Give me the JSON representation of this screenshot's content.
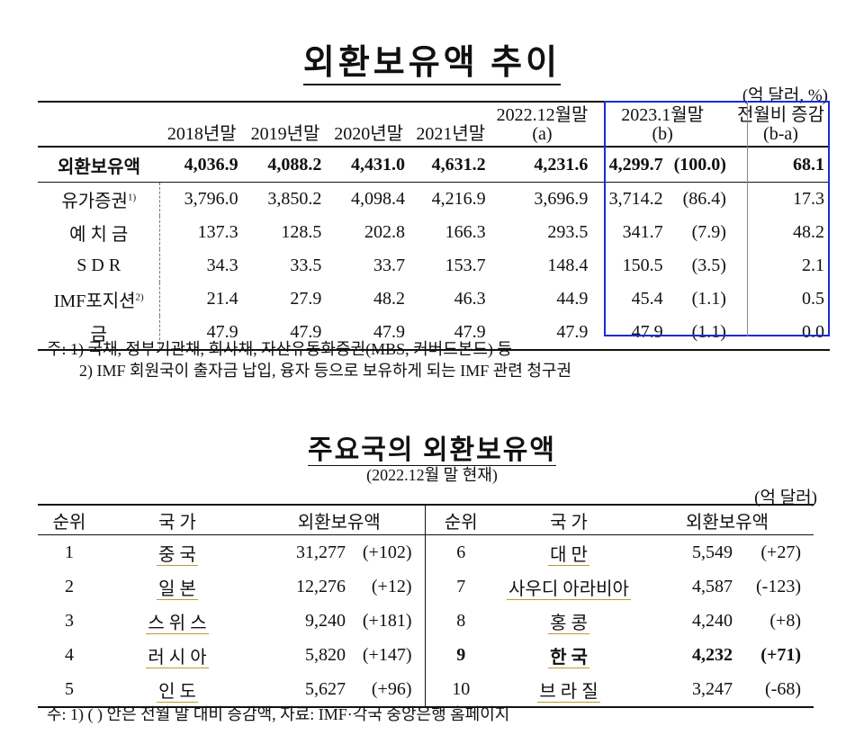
{
  "title1": "외환보유액 추이",
  "unit1": "(억 달러, %)",
  "table1": {
    "headers": {
      "y2018": "2018년말",
      "y2019": "2019년말",
      "y2020": "2020년말",
      "y2021": "2021년말",
      "dec2022": "2022.12월말",
      "dec2022_tag": "(a)",
      "jan2023": "2023.1월말",
      "jan2023_tag": "(b)",
      "change": "전월비 증감",
      "change_tag": "(b-a)"
    },
    "rows": [
      {
        "label": "외환보유액",
        "sup": "",
        "v2018": "4,036.9",
        "v2019": "4,088.2",
        "v2020": "4,431.0",
        "v2021": "4,631.2",
        "dec2022": "4,231.6",
        "jan2023": "4,299.7",
        "share": "(100.0)",
        "change": "68.1"
      },
      {
        "label": "유가증권",
        "sup": "1)",
        "v2018": "3,796.0",
        "v2019": "3,850.2",
        "v2020": "4,098.4",
        "v2021": "4,216.9",
        "dec2022": "3,696.9",
        "jan2023": "3,714.2",
        "share": "(86.4)",
        "change": "17.3"
      },
      {
        "label": "예 치 금",
        "sup": "",
        "v2018": "137.3",
        "v2019": "128.5",
        "v2020": "202.8",
        "v2021": "166.3",
        "dec2022": "293.5",
        "jan2023": "341.7",
        "share": "(7.9)",
        "change": "48.2"
      },
      {
        "label": "S D R",
        "sup": "",
        "v2018": "34.3",
        "v2019": "33.5",
        "v2020": "33.7",
        "v2021": "153.7",
        "dec2022": "148.4",
        "jan2023": "150.5",
        "share": "(3.5)",
        "change": "2.1"
      },
      {
        "label": "IMF포지션",
        "sup": "2)",
        "v2018": "21.4",
        "v2019": "27.9",
        "v2020": "48.2",
        "v2021": "46.3",
        "dec2022": "44.9",
        "jan2023": "45.4",
        "share": "(1.1)",
        "change": "0.5"
      },
      {
        "label": "금",
        "sup": "",
        "v2018": "47.9",
        "v2019": "47.9",
        "v2020": "47.9",
        "v2021": "47.9",
        "dec2022": "47.9",
        "jan2023": "47.9",
        "share": "(1.1)",
        "change": "0.0"
      }
    ],
    "note1": "주: 1) 국채, 정부기관채, 회사채, 자산유동화증권(MBS, 커버드본드) 등",
    "note2": "2) IMF 회원국이 출자금 납입, 융자 등으로 보유하게 되는 IMF 관련 청구권"
  },
  "title2": "주요국의 외환보유액",
  "subtitle2": "(2022.12월 말 현재)",
  "unit2": "(억 달러)",
  "table2": {
    "headers": {
      "rank": "순위",
      "country": "국  가",
      "reserves": "외환보유액"
    },
    "left": [
      {
        "rank": "1",
        "country": "중    국",
        "amount": "31,277",
        "change": "(+102)"
      },
      {
        "rank": "2",
        "country": "일    본",
        "amount": "12,276",
        "change": "(+12)"
      },
      {
        "rank": "3",
        "country": "스 위 스",
        "amount": "9,240",
        "change": "(+181)"
      },
      {
        "rank": "4",
        "country": "러 시 아",
        "amount": "5,820",
        "change": "(+147)"
      },
      {
        "rank": "5",
        "country": "인    도",
        "amount": "5,627",
        "change": "(+96)"
      }
    ],
    "right": [
      {
        "rank": "6",
        "country": "대    만",
        "amount": "5,549",
        "change": "(+27)"
      },
      {
        "rank": "7",
        "country": "사우디 아라비아",
        "amount": "4,587",
        "change": "(-123)"
      },
      {
        "rank": "8",
        "country": "홍    콩",
        "amount": "4,240",
        "change": "(+8)"
      },
      {
        "rank": "9",
        "country": "한    국",
        "amount": "4,232",
        "change": "(+71)"
      },
      {
        "rank": "10",
        "country": "브 라 질",
        "amount": "3,247",
        "change": "(-68)"
      }
    ],
    "footnote": "주: 1) ( ) 안은 전월 말 대비 증감액, 자료: IMF·각국 중앙은행 홈페이지"
  },
  "colors": {
    "highlight_border": "#1a2bd6",
    "underline": "#b89a3a"
  }
}
